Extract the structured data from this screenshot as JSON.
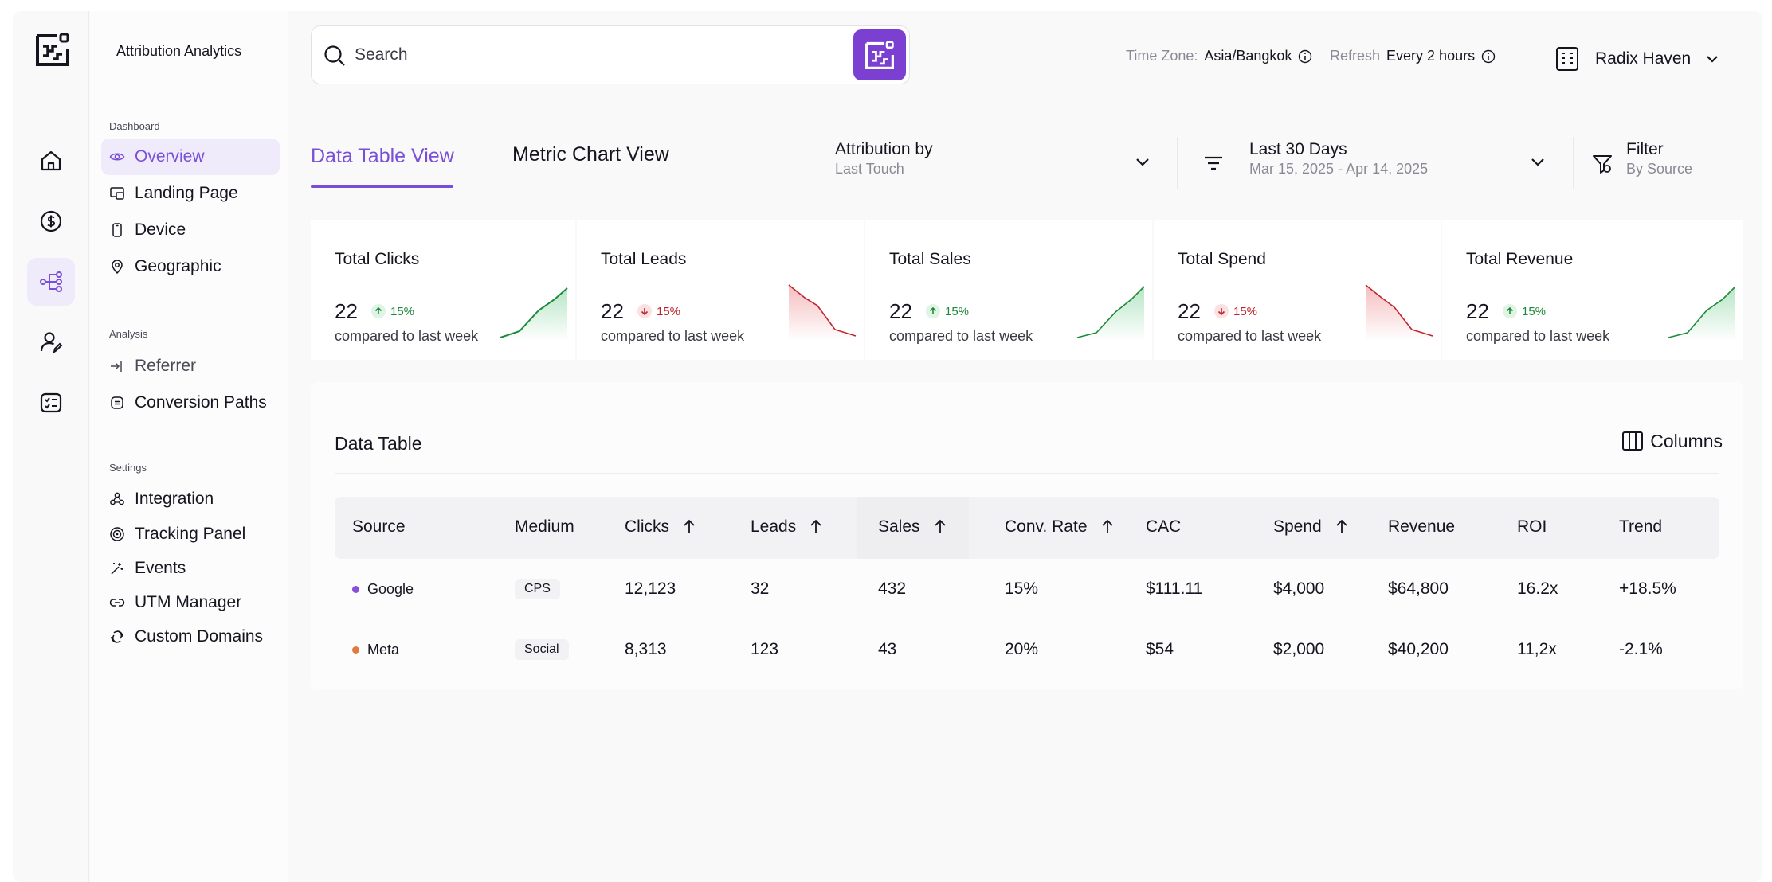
{
  "app": {
    "brand": "Attribution Analytics"
  },
  "rail": {
    "items": [
      {
        "icon": "home-icon",
        "active": false
      },
      {
        "icon": "dollar-icon",
        "active": false
      },
      {
        "icon": "attribution-flow-icon",
        "active": true
      },
      {
        "icon": "user-edit-icon",
        "active": false
      },
      {
        "icon": "checklist-icon",
        "active": false
      }
    ]
  },
  "sidebar": {
    "dashboard_label": "Dashboard",
    "analysis_label": "Analysis",
    "settings_label": "Settings",
    "dashboard": [
      {
        "label": "Overview",
        "icon": "eye-icon"
      },
      {
        "label": "Landing Page",
        "icon": "layout-icon"
      },
      {
        "label": "Device",
        "icon": "phone-icon"
      },
      {
        "label": "Geographic",
        "icon": "map-pin-icon"
      }
    ],
    "analysis": [
      {
        "label": "Referrer",
        "icon": "login-arrow-icon"
      },
      {
        "label": "Conversion Paths",
        "icon": "square-text-icon"
      }
    ],
    "settings": [
      {
        "label": "Integration",
        "icon": "integration-icon"
      },
      {
        "label": "Tracking Panel",
        "icon": "tracking-icon"
      },
      {
        "label": "Events",
        "icon": "sparkle-wand-icon"
      },
      {
        "label": "UTM Manager",
        "icon": "link-icon"
      },
      {
        "label": "Custom Domains",
        "icon": "domain-icon"
      }
    ]
  },
  "search": {
    "placeholder": "Search"
  },
  "topbar": {
    "timezone_label": "Time Zone:",
    "timezone_value": "Asia/Bangkok",
    "refresh_label": "Refresh",
    "refresh_value": "Every 2 hours",
    "account_name": "Radix Haven"
  },
  "tabs": [
    {
      "label": "Data Table View",
      "active": true
    },
    {
      "label": "Metric Chart View",
      "active": false
    }
  ],
  "controls": {
    "attribution_title": "Attribution by",
    "attribution_value": "Last Touch",
    "date_title": "Last 30 Days",
    "date_range": "Mar 15, 2025 - Apr 14, 2025",
    "filter_title": "Filter",
    "filter_value": "By Source"
  },
  "kpis": [
    {
      "title": "Total Clicks",
      "value": "22",
      "delta": "15%",
      "direction": "up",
      "compare": "compared to last week"
    },
    {
      "title": "Total Leads",
      "value": "22",
      "delta": "15%",
      "direction": "down",
      "compare": "compared to last week"
    },
    {
      "title": "Total Sales",
      "value": "22",
      "delta": "15%",
      "direction": "up",
      "compare": "compared to last week"
    },
    {
      "title": "Total Spend",
      "value": "22",
      "delta": "15%",
      "direction": "down",
      "compare": "compared to last week"
    },
    {
      "title": "Total Revenue",
      "value": "22",
      "delta": "15%",
      "direction": "up",
      "compare": "compared to last week"
    }
  ],
  "colors": {
    "accent": "#7a4fd8",
    "positive": "#1f8a3a",
    "negative": "#c0262d"
  },
  "table": {
    "title": "Data Table",
    "columns_button": "Columns",
    "headers": [
      "Source",
      "Medium",
      "Clicks",
      "Leads",
      "Sales",
      "Conv. Rate",
      "CAC",
      "Spend",
      "Revenue",
      "ROI",
      "Trend"
    ],
    "rows": [
      {
        "source": "Google",
        "dot_color": "#8a4fd8",
        "medium": "CPS",
        "clicks": "12,123",
        "leads": "32",
        "sales": "432",
        "conv_rate": "15%",
        "cac": "$111.11",
        "spend": "$4,000",
        "revenue": "$64,800",
        "roi": "16.2x",
        "trend": "+18.5%",
        "trend_dir": "up"
      },
      {
        "source": "Meta",
        "dot_color": "#e07a3f",
        "medium": "Social",
        "clicks": "8,313",
        "leads": "123",
        "sales": "43",
        "conv_rate": "20%",
        "cac": "$54",
        "spend": "$2,000",
        "revenue": "$40,200",
        "roi": "11,2x",
        "trend": "-2.1%",
        "trend_dir": "down"
      }
    ]
  }
}
